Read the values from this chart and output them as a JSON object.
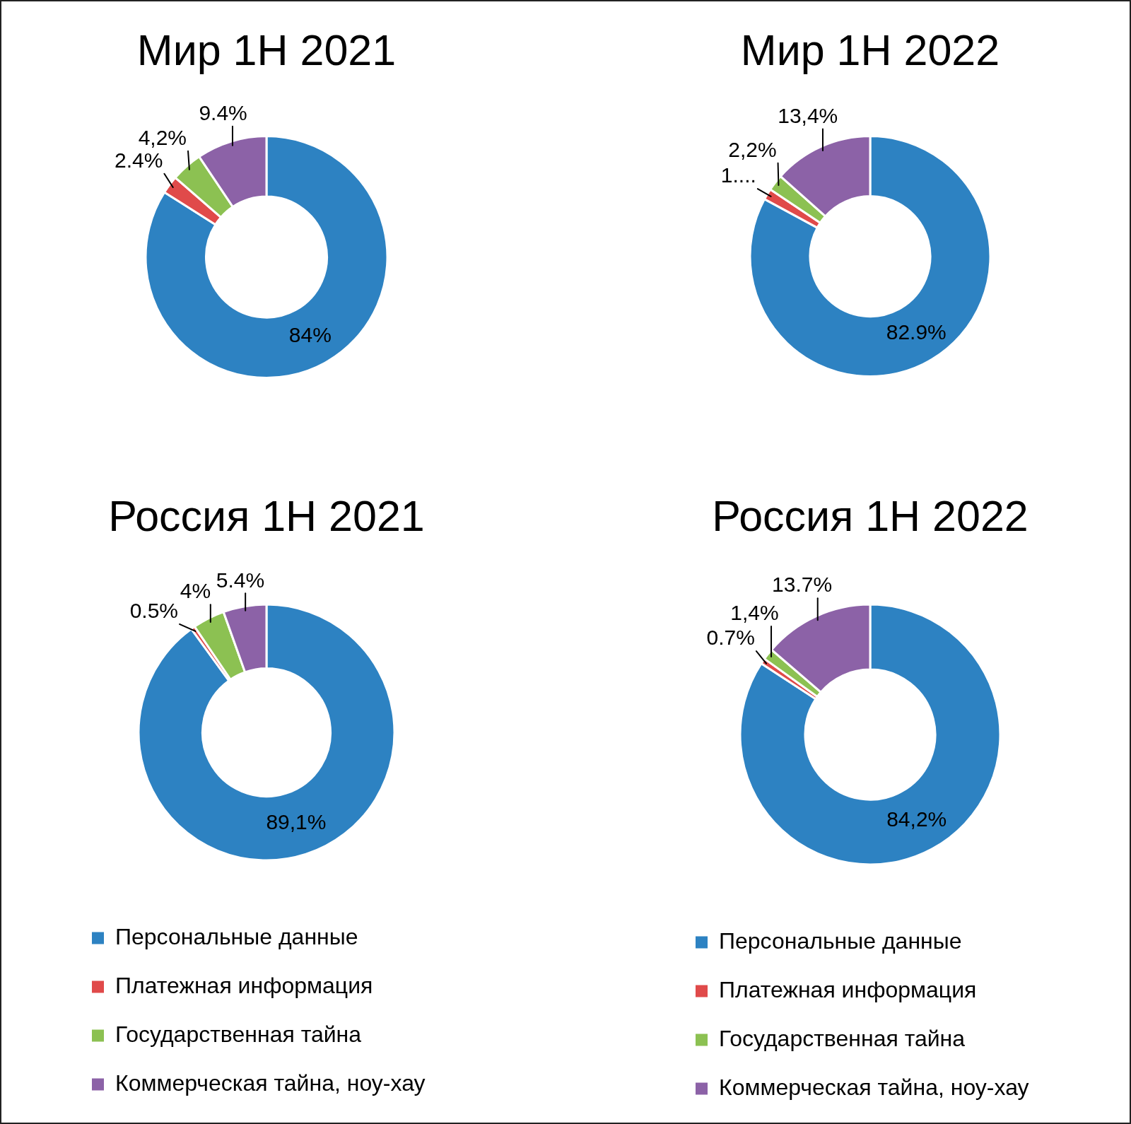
{
  "chart_data": [
    {
      "type": "donut",
      "title": "Мир 1H 2021",
      "categories": [
        null,
        null,
        null,
        null
      ],
      "values": [
        84,
        2.4,
        4.2,
        9.4
      ],
      "colors": [
        "#2d82c2",
        "#e04a4a",
        "#8cc152",
        "#8c62a7"
      ],
      "value_labels": [
        "84%",
        "2.4%",
        "4,2%",
        "9.4%"
      ]
    },
    {
      "type": "donut",
      "title": "Мир 1H 2022",
      "categories": [
        null,
        null,
        null,
        null
      ],
      "values": [
        82.9,
        1.5,
        2.2,
        13.4
      ],
      "colors": [
        "#2d82c2",
        "#e04a4a",
        "#8cc152",
        "#8c62a7"
      ],
      "value_labels": [
        "82.9%",
        "1....",
        "2,2%",
        "13,4%"
      ]
    },
    {
      "type": "donut",
      "title": "Россия 1H 2021",
      "categories": [
        "Персональные данные",
        "Платежная информация",
        "Государственная тайна",
        "Коммерческая тайна, ноу-хау"
      ],
      "values": [
        89.1,
        0.5,
        4,
        5.4
      ],
      "colors": [
        "#2d82c2",
        "#e04a4a",
        "#8cc152",
        "#8c62a7"
      ],
      "value_labels": [
        "89,1%",
        "0.5%",
        "4%",
        "5.4%"
      ],
      "legend": "bottom"
    },
    {
      "type": "donut",
      "title": "Россия 1H 2022",
      "categories": [
        "Персональные данные",
        "Платежная информация",
        "Государственная тайна",
        "Коммерческая тайна, ноу-хау"
      ],
      "values": [
        84.2,
        0.7,
        1.4,
        13.7
      ],
      "colors": [
        "#2d82c2",
        "#e04a4a",
        "#8cc152",
        "#8c62a7"
      ],
      "value_labels": [
        "84,2%",
        "0.7%",
        "1,4%",
        "13.7%"
      ],
      "legend": "bottom"
    }
  ]
}
